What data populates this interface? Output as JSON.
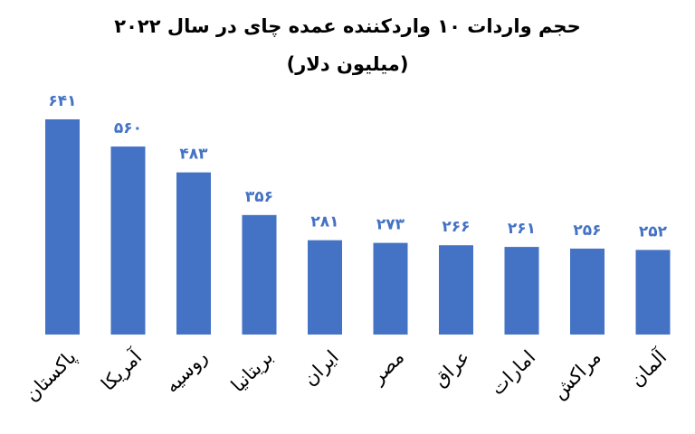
{
  "chart_data": {
    "type": "bar",
    "title": "حجم واردات ۱۰ واردکننده عمده چای در سال ۲۰۲۲",
    "subtitle": "(میلیون دلار)",
    "categories": [
      "پاکستان",
      "آمریکا",
      "روسیه",
      "بریتانیا",
      "ایران",
      "مصر",
      "عراق",
      "امارات",
      "مراکش",
      "آلمان"
    ],
    "values": [
      641,
      560,
      483,
      356,
      281,
      273,
      266,
      261,
      256,
      252
    ],
    "value_labels": [
      "۶۴۱",
      "۵۶۰",
      "۴۸۳",
      "۳۵۶",
      "۲۸۱",
      "۲۷۳",
      "۲۶۶",
      "۲۶۱",
      "۲۵۶",
      "۲۵۲"
    ],
    "color": "#4472c4"
  }
}
